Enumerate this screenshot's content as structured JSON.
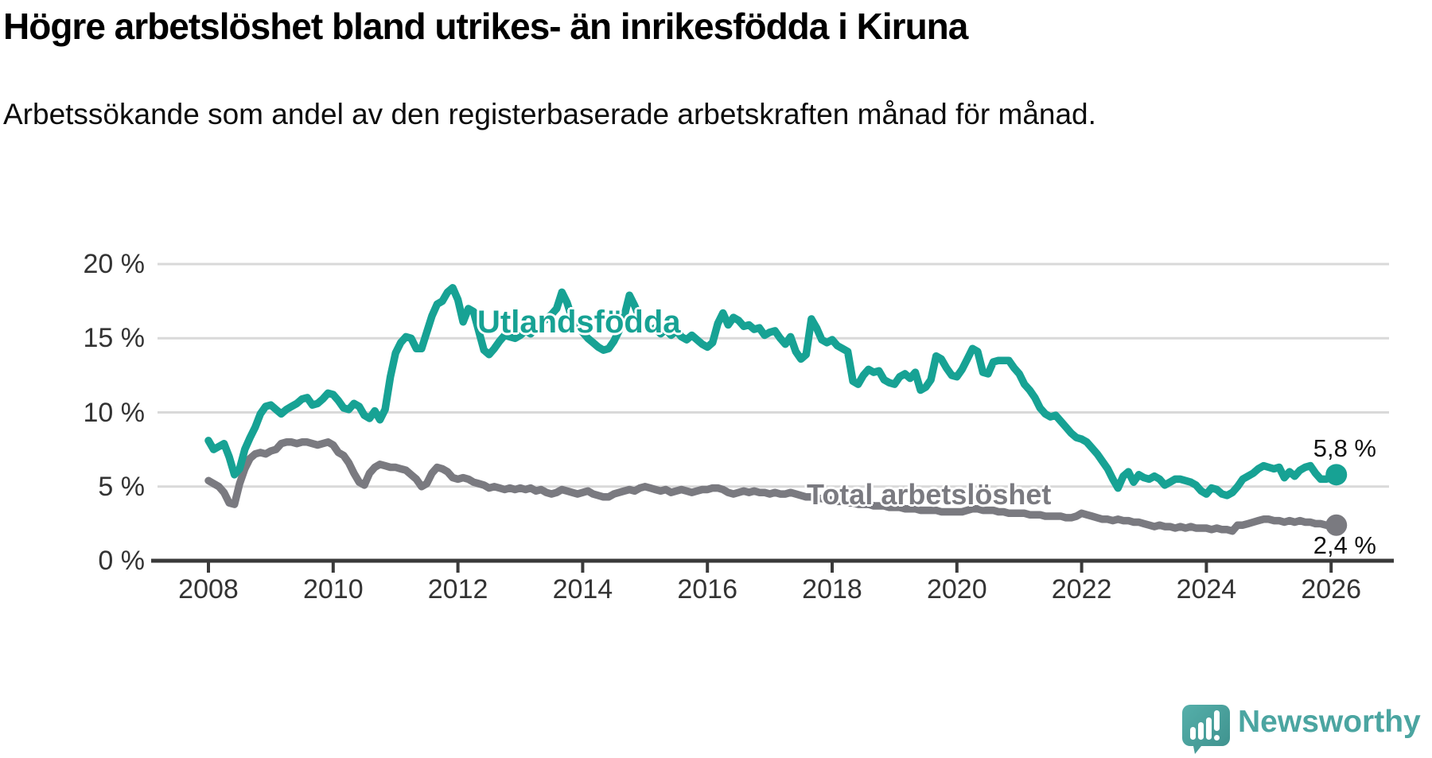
{
  "header": {
    "title": "Högre arbetslöshet bland utrikes- än inrikesfödda i Kiruna",
    "subtitle": "Arbetssökande som andel av den registerbaserade arbetskraften månad för månad."
  },
  "branding": {
    "name": "Newsworthy",
    "color": "#4BA5A1",
    "icon": "speech-bubble-bar-chart"
  },
  "colors": {
    "series_foreign_born": "#17A294",
    "series_total": "#7A7A80",
    "axis": "#3A3A3A",
    "gridline": "#D9D9D9",
    "text": "#000000",
    "tick_text": "#333333"
  },
  "chart_data": {
    "type": "line",
    "title": "Högre arbetslöshet bland utrikes- än inrikesfödda i Kiruna",
    "subtitle": "Arbetssökande som andel av den registerbaserade arbetskraften månad för månad.",
    "unit": "%",
    "frequency": "monthly",
    "x_start": "2008-01",
    "x_end": "2026-02",
    "xlabel": "",
    "ylabel": "",
    "ylim": [
      0,
      20
    ],
    "grid": true,
    "legend_position": "inline-labels",
    "y_ticks": [
      {
        "value": 20,
        "label": "20 %"
      },
      {
        "value": 15,
        "label": "15 %"
      },
      {
        "value": 10,
        "label": "10 %"
      },
      {
        "value": 5,
        "label": "5 %"
      },
      {
        "value": 0,
        "label": "0 %"
      }
    ],
    "x_ticks": [
      {
        "year": 2008,
        "label": "2008"
      },
      {
        "year": 2010,
        "label": "2010"
      },
      {
        "year": 2012,
        "label": "2012"
      },
      {
        "year": 2014,
        "label": "2014"
      },
      {
        "year": 2016,
        "label": "2016"
      },
      {
        "year": 2018,
        "label": "2018"
      },
      {
        "year": 2020,
        "label": "2020"
      },
      {
        "year": 2022,
        "label": "2022"
      },
      {
        "year": 2024,
        "label": "2024"
      },
      {
        "year": 2026,
        "label": "2026"
      }
    ],
    "series": [
      {
        "name": "Utlandsfödda",
        "color": "#17A294",
        "end_value": 5.8,
        "end_label": "5,8 %",
        "values": [
          8.1,
          7.5,
          7.7,
          7.9,
          7.0,
          5.8,
          6.2,
          7.5,
          8.3,
          9.0,
          9.9,
          10.4,
          10.5,
          10.2,
          9.9,
          10.2,
          10.4,
          10.6,
          10.9,
          11.0,
          10.5,
          10.6,
          10.9,
          11.3,
          11.2,
          10.8,
          10.3,
          10.2,
          10.6,
          10.4,
          9.8,
          9.6,
          10.1,
          9.5,
          10.2,
          12.4,
          14.0,
          14.7,
          15.1,
          15.0,
          14.3,
          14.3,
          15.4,
          16.5,
          17.3,
          17.5,
          18.1,
          18.4,
          17.6,
          16.1,
          17.0,
          16.8,
          15.5,
          14.2,
          13.9,
          14.3,
          14.8,
          15.2,
          15.1,
          15.0,
          15.2,
          15.5,
          15.3,
          15.7,
          16.0,
          16.3,
          16.6,
          17.0,
          18.1,
          17.4,
          16.3,
          15.8,
          15.4,
          15.0,
          14.7,
          14.4,
          14.2,
          14.3,
          14.8,
          15.5,
          16.5,
          17.9,
          17.2,
          16.3,
          15.8,
          15.5,
          15.7,
          15.3,
          15.6,
          15.2,
          15.5,
          15.1,
          14.9,
          15.2,
          14.9,
          14.6,
          14.4,
          14.7,
          16.0,
          16.7,
          15.9,
          16.4,
          16.2,
          15.8,
          15.9,
          15.6,
          15.7,
          15.2,
          15.4,
          15.5,
          15.0,
          14.6,
          15.1,
          14.1,
          13.6,
          13.9,
          16.3,
          15.7,
          14.9,
          14.7,
          14.9,
          14.5,
          14.3,
          14.1,
          12.1,
          11.9,
          12.5,
          12.9,
          12.7,
          12.8,
          12.2,
          12.0,
          11.9,
          12.4,
          12.6,
          12.3,
          12.7,
          11.5,
          11.7,
          12.2,
          13.8,
          13.6,
          13.0,
          12.5,
          12.4,
          12.9,
          13.6,
          14.3,
          14.1,
          12.7,
          12.6,
          13.4,
          13.5,
          13.5,
          13.5,
          13.0,
          12.6,
          11.9,
          11.5,
          11.0,
          10.3,
          9.9,
          9.7,
          9.8,
          9.4,
          9.0,
          8.6,
          8.3,
          8.2,
          8.0,
          7.6,
          7.2,
          6.7,
          6.2,
          5.5,
          4.9,
          5.7,
          6.0,
          5.3,
          5.8,
          5.6,
          5.5,
          5.7,
          5.5,
          5.1,
          5.3,
          5.5,
          5.5,
          5.4,
          5.3,
          5.1,
          4.7,
          4.5,
          4.9,
          4.8,
          4.5,
          4.4,
          4.6,
          5.0,
          5.5,
          5.7,
          5.9,
          6.2,
          6.4,
          6.3,
          6.2,
          6.3,
          5.6,
          6.0,
          5.7,
          6.1,
          6.3,
          6.4,
          5.9,
          5.5,
          5.5,
          5.6,
          5.8
        ]
      },
      {
        "name": "Total arbetslöshet",
        "color": "#7A7A80",
        "end_value": 2.4,
        "end_label": "2,4 %",
        "values": [
          5.4,
          5.2,
          5.0,
          4.6,
          3.9,
          3.8,
          5.2,
          6.2,
          6.9,
          7.2,
          7.3,
          7.2,
          7.4,
          7.5,
          7.9,
          8.0,
          8.0,
          7.9,
          8.0,
          8.0,
          7.9,
          7.8,
          7.9,
          8.0,
          7.8,
          7.3,
          7.1,
          6.6,
          5.9,
          5.3,
          5.1,
          5.9,
          6.3,
          6.5,
          6.4,
          6.3,
          6.3,
          6.2,
          6.1,
          5.8,
          5.5,
          5.0,
          5.2,
          5.9,
          6.3,
          6.2,
          6.0,
          5.6,
          5.5,
          5.6,
          5.5,
          5.3,
          5.2,
          5.1,
          4.9,
          5.0,
          4.9,
          4.8,
          4.9,
          4.8,
          4.9,
          4.8,
          4.9,
          4.7,
          4.8,
          4.6,
          4.5,
          4.6,
          4.8,
          4.7,
          4.6,
          4.5,
          4.6,
          4.7,
          4.5,
          4.4,
          4.3,
          4.3,
          4.5,
          4.6,
          4.7,
          4.8,
          4.7,
          4.9,
          5.0,
          4.9,
          4.8,
          4.7,
          4.8,
          4.6,
          4.7,
          4.8,
          4.7,
          4.6,
          4.7,
          4.8,
          4.8,
          4.9,
          4.9,
          4.8,
          4.6,
          4.5,
          4.6,
          4.7,
          4.6,
          4.7,
          4.6,
          4.6,
          4.5,
          4.6,
          4.5,
          4.5,
          4.6,
          4.5,
          4.4,
          4.3,
          4.3,
          4.2,
          4.2,
          4.1,
          4.1,
          4.0,
          4.0,
          3.9,
          3.9,
          3.8,
          3.8,
          3.8,
          3.7,
          3.7,
          3.7,
          3.6,
          3.6,
          3.6,
          3.5,
          3.5,
          3.5,
          3.4,
          3.4,
          3.4,
          3.4,
          3.3,
          3.3,
          3.3,
          3.3,
          3.3,
          3.4,
          3.5,
          3.5,
          3.4,
          3.4,
          3.4,
          3.3,
          3.3,
          3.2,
          3.2,
          3.2,
          3.2,
          3.1,
          3.1,
          3.1,
          3.0,
          3.0,
          3.0,
          3.0,
          2.9,
          2.9,
          3.0,
          3.2,
          3.1,
          3.0,
          2.9,
          2.8,
          2.8,
          2.7,
          2.8,
          2.7,
          2.7,
          2.6,
          2.6,
          2.5,
          2.4,
          2.3,
          2.4,
          2.3,
          2.3,
          2.2,
          2.3,
          2.2,
          2.3,
          2.2,
          2.2,
          2.2,
          2.1,
          2.2,
          2.1,
          2.1,
          2.0,
          2.4,
          2.4,
          2.5,
          2.6,
          2.7,
          2.8,
          2.8,
          2.7,
          2.7,
          2.6,
          2.7,
          2.6,
          2.7,
          2.6,
          2.6,
          2.5,
          2.5,
          2.4,
          2.4,
          2.4
        ]
      }
    ]
  }
}
